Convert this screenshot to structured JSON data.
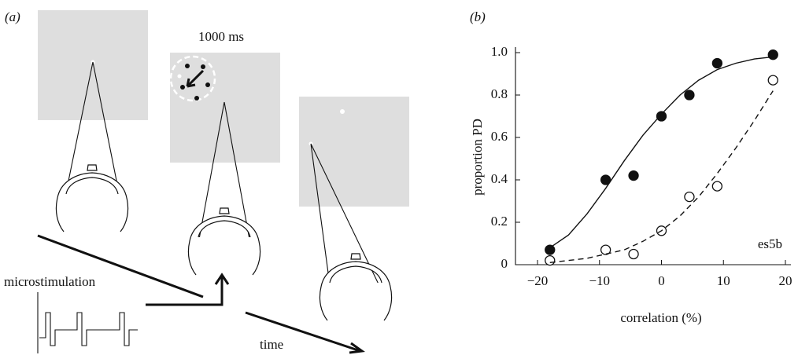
{
  "panel_a": {
    "label": "(a)",
    "duration": "1000 ms",
    "stimulation": "microstimulation",
    "time": "time"
  },
  "chart_data": {
    "type": "scatter",
    "panel_label": "(b)",
    "x_label": "correlation (%)",
    "y_label": "proportion PD",
    "annotation": "es5b",
    "xlim": [
      -20,
      20
    ],
    "ylim": [
      0,
      1.0
    ],
    "xticks": [
      {
        "value": -20,
        "label": "−20"
      },
      {
        "value": -10,
        "label": "−10"
      },
      0,
      10,
      20
    ],
    "yticks": [
      0,
      0.2,
      0.4,
      0.6,
      0.8,
      {
        "value": 1,
        "label": "1.0"
      }
    ],
    "series": [
      {
        "type": "scatter",
        "color": "#111111",
        "x": [
          -18,
          -9,
          -4.5,
          0,
          4.5,
          9,
          18
        ],
        "values": [
          0.07,
          0.4,
          0.42,
          0.7,
          0.8,
          0.95,
          0.99
        ]
      },
      {
        "type": "scatter",
        "color": "#ffffff",
        "x": [
          -18,
          -9,
          -4.5,
          0,
          4.5,
          9,
          18
        ],
        "values": [
          0.02,
          0.07,
          0.05,
          0.16,
          0.32,
          0.37,
          0.87
        ]
      },
      {
        "type": "line",
        "dashed": false,
        "color": "#111111",
        "x": [
          -18,
          -15,
          -12,
          -9,
          -6,
          -3,
          0,
          3,
          6,
          9,
          12,
          15,
          18
        ],
        "values": [
          0.08,
          0.14,
          0.24,
          0.36,
          0.49,
          0.61,
          0.71,
          0.8,
          0.87,
          0.92,
          0.95,
          0.97,
          0.98
        ]
      },
      {
        "type": "line",
        "dashed": true,
        "color": "#111111",
        "x": [
          -18,
          -15,
          -12,
          -9,
          -6,
          -3,
          0,
          3,
          6,
          9,
          12,
          15,
          18
        ],
        "values": [
          0.01,
          0.02,
          0.03,
          0.05,
          0.07,
          0.11,
          0.16,
          0.23,
          0.32,
          0.43,
          0.55,
          0.68,
          0.82
        ]
      }
    ]
  }
}
